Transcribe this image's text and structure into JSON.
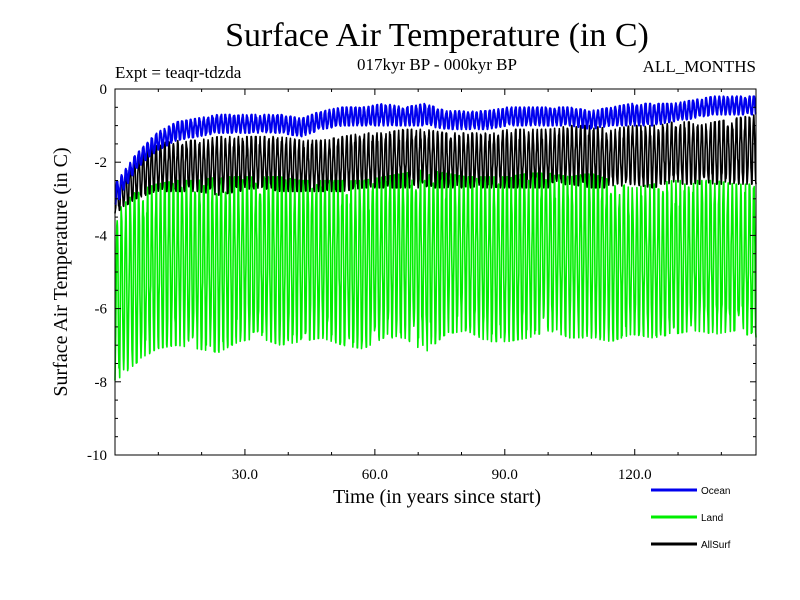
{
  "chart_data": {
    "type": "line",
    "title": "Surface Air Temperature (in C)",
    "experiment_label": "Expt = teaqr-tdzda",
    "period_label": "017kyr BP - 000kyr BP",
    "months_label": "ALL_MONTHS",
    "xlabel": "Time (in years since start)",
    "ylabel": "Surface Air Temperature (in C)",
    "xlim": [
      0,
      148
    ],
    "ylim": [
      -10,
      0
    ],
    "x_ticks": [
      30,
      60,
      90,
      120
    ],
    "x_tick_labels": [
      "30.0",
      "60.0",
      "90.0",
      "120.0"
    ],
    "y_ticks": [
      0,
      -2,
      -4,
      -6,
      -8,
      -10
    ],
    "y_tick_labels": [
      "0",
      "-2",
      "-4",
      "-6",
      "-8",
      "-10"
    ],
    "samples_per_year": 12,
    "series": [
      {
        "name": "Land",
        "color": "#00ee00",
        "envelope_upper": [
          -3.4,
          -2.8,
          -2.6,
          -2.5,
          -2.5,
          -2.4,
          -2.4,
          -2.4,
          -2.4,
          -2.5,
          -2.5,
          -2.5,
          -2.5,
          -2.4,
          -2.3,
          -2.2,
          -2.3,
          -2.4,
          -2.4,
          -2.4,
          -2.3,
          -2.3,
          -2.4,
          -2.3,
          -2.5,
          -2.7,
          -2.6,
          -2.5,
          -2.5,
          -2.5,
          -2.6,
          -2.6
        ],
        "envelope_lower": [
          -8.0,
          -7.5,
          -7.1,
          -7.0,
          -7.1,
          -7.2,
          -6.9,
          -6.8,
          -7.0,
          -6.9,
          -6.8,
          -7.0,
          -7.1,
          -6.8,
          -6.8,
          -7.2,
          -6.7,
          -6.6,
          -6.9,
          -6.9,
          -6.8,
          -6.6,
          -6.8,
          -6.8,
          -6.9,
          -6.7,
          -6.8,
          -6.7,
          -6.6,
          -6.7,
          -6.6,
          -6.8
        ]
      },
      {
        "name": "AllSurf",
        "color": "#000000",
        "envelope_upper": [
          -2.6,
          -1.9,
          -1.5,
          -1.4,
          -1.4,
          -1.3,
          -1.3,
          -1.3,
          -1.3,
          -1.4,
          -1.4,
          -1.3,
          -1.2,
          -1.2,
          -1.1,
          -1.1,
          -1.2,
          -1.2,
          -1.2,
          -1.1,
          -1.1,
          -1.1,
          -1.0,
          -1.0,
          -1.1,
          -1.0,
          -1.0,
          -0.9,
          -0.9,
          -0.9,
          -0.8,
          -0.7
        ],
        "envelope_lower": [
          -3.4,
          -3.0,
          -2.8,
          -2.8,
          -2.8,
          -2.9,
          -2.8,
          -2.7,
          -2.8,
          -2.8,
          -2.8,
          -2.8,
          -2.7,
          -2.7,
          -2.7,
          -2.7,
          -2.7,
          -2.7,
          -2.7,
          -2.7,
          -2.7,
          -2.7,
          -2.6,
          -2.7,
          -2.7,
          -2.6,
          -2.7,
          -2.6,
          -2.6,
          -2.6,
          -2.6,
          -2.6
        ]
      },
      {
        "name": "Ocean",
        "color": "#0000ee",
        "envelope_upper": [
          -2.6,
          -1.8,
          -1.2,
          -0.9,
          -0.8,
          -0.7,
          -0.7,
          -0.7,
          -0.7,
          -0.8,
          -0.6,
          -0.5,
          -0.5,
          -0.4,
          -0.5,
          -0.4,
          -0.6,
          -0.6,
          -0.6,
          -0.5,
          -0.5,
          -0.5,
          -0.5,
          -0.6,
          -0.5,
          -0.4,
          -0.4,
          -0.4,
          -0.3,
          -0.2,
          -0.2,
          -0.2
        ],
        "envelope_lower": [
          -3.2,
          -2.2,
          -1.7,
          -1.4,
          -1.3,
          -1.2,
          -1.2,
          -1.2,
          -1.2,
          -1.3,
          -1.1,
          -1.0,
          -1.0,
          -1.0,
          -1.0,
          -1.0,
          -1.1,
          -1.1,
          -1.1,
          -1.0,
          -1.0,
          -1.0,
          -1.0,
          -1.1,
          -1.0,
          -1.0,
          -1.0,
          -0.9,
          -0.8,
          -0.7,
          -0.7,
          -0.7
        ]
      }
    ],
    "legend": {
      "placement": "bottom-right",
      "entries": [
        {
          "name": "Ocean",
          "color": "#0000ee"
        },
        {
          "name": "Land",
          "color": "#00ee00"
        },
        {
          "name": "AllSurf",
          "color": "#000000"
        }
      ]
    }
  }
}
